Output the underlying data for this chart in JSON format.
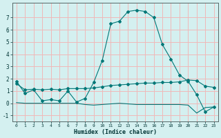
{
  "title": "",
  "xlabel": "Humidex (Indice chaleur)",
  "ylabel": "",
  "bg_color": "#d4f0f0",
  "grid_color": "#f0b8b8",
  "line_color": "#007777",
  "xlim": [
    -0.5,
    23.5
  ],
  "ylim": [
    -1.5,
    8.2
  ],
  "xticks": [
    0,
    1,
    2,
    3,
    4,
    5,
    6,
    7,
    8,
    9,
    10,
    11,
    12,
    13,
    14,
    15,
    16,
    17,
    18,
    19,
    20,
    21,
    22,
    23
  ],
  "yticks": [
    -1,
    0,
    1,
    2,
    3,
    4,
    5,
    6,
    7
  ],
  "line1_x": [
    0,
    1,
    2,
    3,
    4,
    5,
    6,
    7,
    8,
    9,
    10,
    11,
    12,
    13,
    14,
    15,
    16,
    17,
    18,
    19,
    20,
    21,
    22,
    23
  ],
  "line1_y": [
    1.8,
    0.8,
    1.1,
    0.2,
    0.3,
    0.2,
    1.0,
    0.1,
    0.4,
    1.7,
    3.5,
    6.5,
    6.7,
    7.5,
    7.6,
    7.5,
    7.0,
    4.8,
    3.6,
    2.3,
    1.8,
    0.7,
    -0.7,
    -0.3
  ],
  "line2_x": [
    0,
    1,
    2,
    3,
    4,
    5,
    6,
    7,
    8,
    9,
    10,
    11,
    12,
    13,
    14,
    15,
    16,
    17,
    18,
    19,
    20,
    21,
    22,
    23
  ],
  "line2_y": [
    1.6,
    1.1,
    1.15,
    1.1,
    1.15,
    1.1,
    1.2,
    1.2,
    1.2,
    1.25,
    1.35,
    1.45,
    1.5,
    1.55,
    1.6,
    1.65,
    1.65,
    1.7,
    1.7,
    1.75,
    1.9,
    1.85,
    1.4,
    1.3
  ],
  "line3_x": [
    0,
    1,
    2,
    3,
    4,
    5,
    6,
    7,
    8,
    9,
    10,
    11,
    12,
    13,
    14,
    15,
    16,
    17,
    18,
    19,
    20,
    21,
    22,
    23
  ],
  "line3_y": [
    0.05,
    0.0,
    0.0,
    0.0,
    0.0,
    0.0,
    0.0,
    0.0,
    -0.1,
    -0.15,
    -0.1,
    -0.05,
    0.0,
    -0.05,
    -0.1,
    -0.1,
    -0.1,
    -0.1,
    -0.1,
    -0.1,
    -0.15,
    -0.8,
    -0.35,
    -0.3
  ]
}
